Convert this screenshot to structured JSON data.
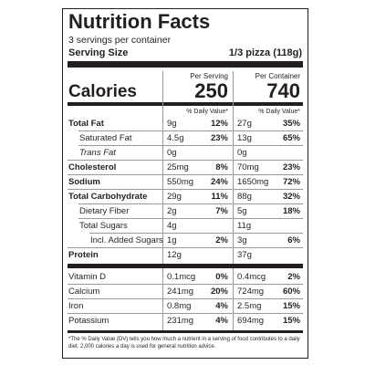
{
  "header": {
    "title": "Nutrition Facts",
    "servings": "3 servings per container",
    "serving_size_label": "Serving Size",
    "serving_size": "1/3 pizza (118g)"
  },
  "columns": [
    "Per Serving",
    "Per Container"
  ],
  "calories": {
    "label": "Calories",
    "serving": "250",
    "container": "740"
  },
  "dv_header": "% Daily Value*",
  "nutrients": [
    {
      "name": "Total Fat",
      "serving": {
        "amount": "9g",
        "dv": "12%"
      },
      "container": {
        "amount": "27g",
        "dv": "35%"
      }
    },
    {
      "name": "Saturated Fat",
      "serving": {
        "amount": "4.5g",
        "dv": "23%"
      },
      "container": {
        "amount": "13g",
        "dv": "65%"
      }
    },
    {
      "name": "Trans Fat",
      "serving": {
        "amount": "0g",
        "dv": null
      },
      "container": {
        "amount": "0g",
        "dv": null
      }
    },
    {
      "name": "Cholesterol",
      "serving": {
        "amount": "25mg",
        "dv": "8%"
      },
      "container": {
        "amount": "70mg",
        "dv": "23%"
      }
    },
    {
      "name": "Sodium",
      "serving": {
        "amount": "550mg",
        "dv": "24%"
      },
      "container": {
        "amount": "1650mg",
        "dv": "72%"
      }
    },
    {
      "name": "Total Carbohydrate",
      "serving": {
        "amount": "29g",
        "dv": "11%"
      },
      "container": {
        "amount": "88g",
        "dv": "32%"
      }
    },
    {
      "name": "Dietary Fiber",
      "serving": {
        "amount": "2g",
        "dv": "7%"
      },
      "container": {
        "amount": "5g",
        "dv": "18%"
      }
    },
    {
      "name": "Total Sugars",
      "serving": {
        "amount": "4g",
        "dv": null
      },
      "container": {
        "amount": "11g",
        "dv": null
      }
    },
    {
      "name": "Incl. Added Sugars",
      "serving": {
        "amount": "1g",
        "dv": "2%"
      },
      "container": {
        "amount": "3g",
        "dv": "6%"
      }
    },
    {
      "name": "Protein",
      "serving": {
        "amount": "12g",
        "dv": null
      },
      "container": {
        "amount": "37g",
        "dv": null
      }
    },
    {
      "name": "Vitamin D",
      "serving": {
        "amount": "0.1mcg",
        "dv": "0%"
      },
      "container": {
        "amount": "0.4mcg",
        "dv": "2%"
      }
    },
    {
      "name": "Calcium",
      "serving": {
        "amount": "241mg",
        "dv": "20%"
      },
      "container": {
        "amount": "724mg",
        "dv": "60%"
      }
    },
    {
      "name": "Iron",
      "serving": {
        "amount": "0.8mg",
        "dv": "4%"
      },
      "container": {
        "amount": "2.5mg",
        "dv": "15%"
      }
    },
    {
      "name": "Potassium",
      "serving": {
        "amount": "231mg",
        "dv": "4%"
      },
      "container": {
        "amount": "694mg",
        "dv": "15%"
      }
    }
  ],
  "footnote": "*The % Daily Value (DV) tells you how much a nutrient in a serving of food contributes to a daily diet. 2,000 calories a day is used for general nutrition advice."
}
